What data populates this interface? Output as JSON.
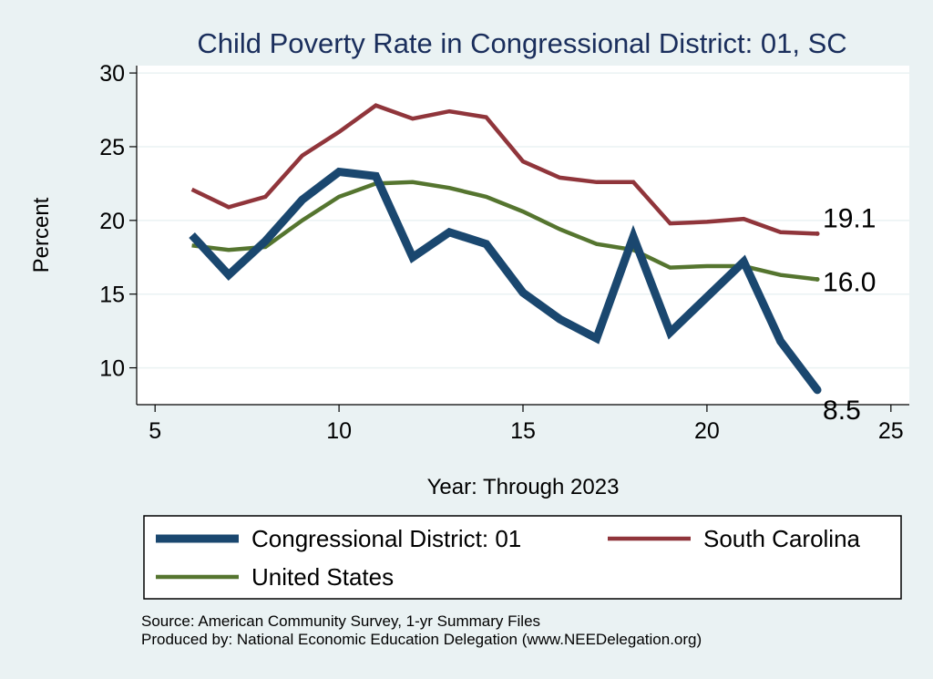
{
  "chart_data": {
    "type": "line",
    "title": "Child Poverty Rate in Congressional District:  01, SC",
    "xlabel": "Year: Through 2023",
    "ylabel": "Percent",
    "xlim": [
      4.5,
      25.5
    ],
    "ylim": [
      7.5,
      30.5
    ],
    "x_ticks": [
      "5",
      "10",
      "15",
      "20",
      "25"
    ],
    "y_ticks": [
      "10",
      "15",
      "20",
      "25",
      "30"
    ],
    "grid": true,
    "legend_position": "bottom",
    "series": [
      {
        "name": "Congressional District:  01",
        "color": "#1a476f",
        "x": [
          6,
          7,
          8,
          9,
          10,
          11,
          12,
          13,
          14,
          15,
          16,
          17,
          18,
          19,
          20,
          21,
          22,
          23
        ],
        "values": [
          19.0,
          16.3,
          18.6,
          21.4,
          23.3,
          23.0,
          17.5,
          19.2,
          18.4,
          15.1,
          13.3,
          12.0,
          18.9,
          12.4,
          14.8,
          17.2,
          11.8,
          8.5
        ],
        "end_label": "8.5"
      },
      {
        "name": "South Carolina",
        "color": "#90353b",
        "x": [
          6,
          7,
          8,
          9,
          10,
          11,
          12,
          13,
          14,
          15,
          16,
          17,
          18,
          19,
          20,
          21,
          22,
          23
        ],
        "values": [
          22.1,
          20.9,
          21.6,
          24.4,
          26.0,
          27.8,
          26.9,
          27.4,
          27.0,
          24.0,
          22.9,
          22.6,
          22.6,
          19.8,
          19.9,
          20.1,
          19.2,
          19.1
        ],
        "end_label": "19.1"
      },
      {
        "name": "United States",
        "color": "#55752f",
        "x": [
          6,
          7,
          8,
          9,
          10,
          11,
          12,
          13,
          14,
          15,
          16,
          17,
          18,
          19,
          20,
          21,
          22,
          23
        ],
        "values": [
          18.3,
          18.0,
          18.2,
          20.0,
          21.6,
          22.5,
          22.6,
          22.2,
          21.6,
          20.6,
          19.4,
          18.4,
          18.0,
          16.8,
          16.9,
          16.9,
          16.3,
          16.0
        ],
        "end_label": "16.0"
      }
    ],
    "notes": [
      "Source: American Community Survey, 1-yr Summary Files",
      "Produced by: National Economic Education Delegation (www.NEEDelegation.org)"
    ]
  }
}
